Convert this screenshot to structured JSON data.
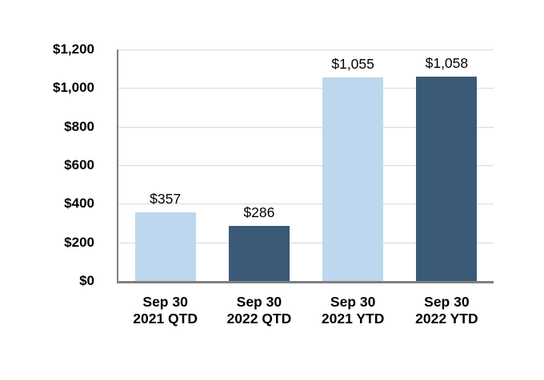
{
  "chart_data": {
    "type": "bar",
    "title": "",
    "xlabel": "",
    "ylabel": "",
    "categories": [
      "Sep 30\n2021 QTD",
      "Sep 30\n2022 QTD",
      "Sep 30\n2021 YTD",
      "Sep 30\n2022 YTD"
    ],
    "values": [
      357,
      286,
      1055,
      1058
    ],
    "data_labels": [
      "$357",
      "$286",
      "$1,055",
      "$1,058"
    ],
    "bar_colors": [
      "#BDD7EE",
      "#3A5A78",
      "#BDD7EE",
      "#3A5A78"
    ],
    "ylim": [
      0,
      1200
    ],
    "yticks": [
      0,
      200,
      400,
      600,
      800,
      1000,
      1200
    ],
    "ytick_labels": [
      "$0",
      "$200",
      "$400",
      "$600",
      "$800",
      "$1,000",
      "$1,200"
    ],
    "grid": "horizontal",
    "legend": "none",
    "colors": {
      "light_blue": "#BDD7EE",
      "dark_blue": "#3A5A78",
      "gridline": "#D9D9D9",
      "axis": "#7F7F7F",
      "text": "#000000",
      "background": "#FFFFFF"
    }
  }
}
